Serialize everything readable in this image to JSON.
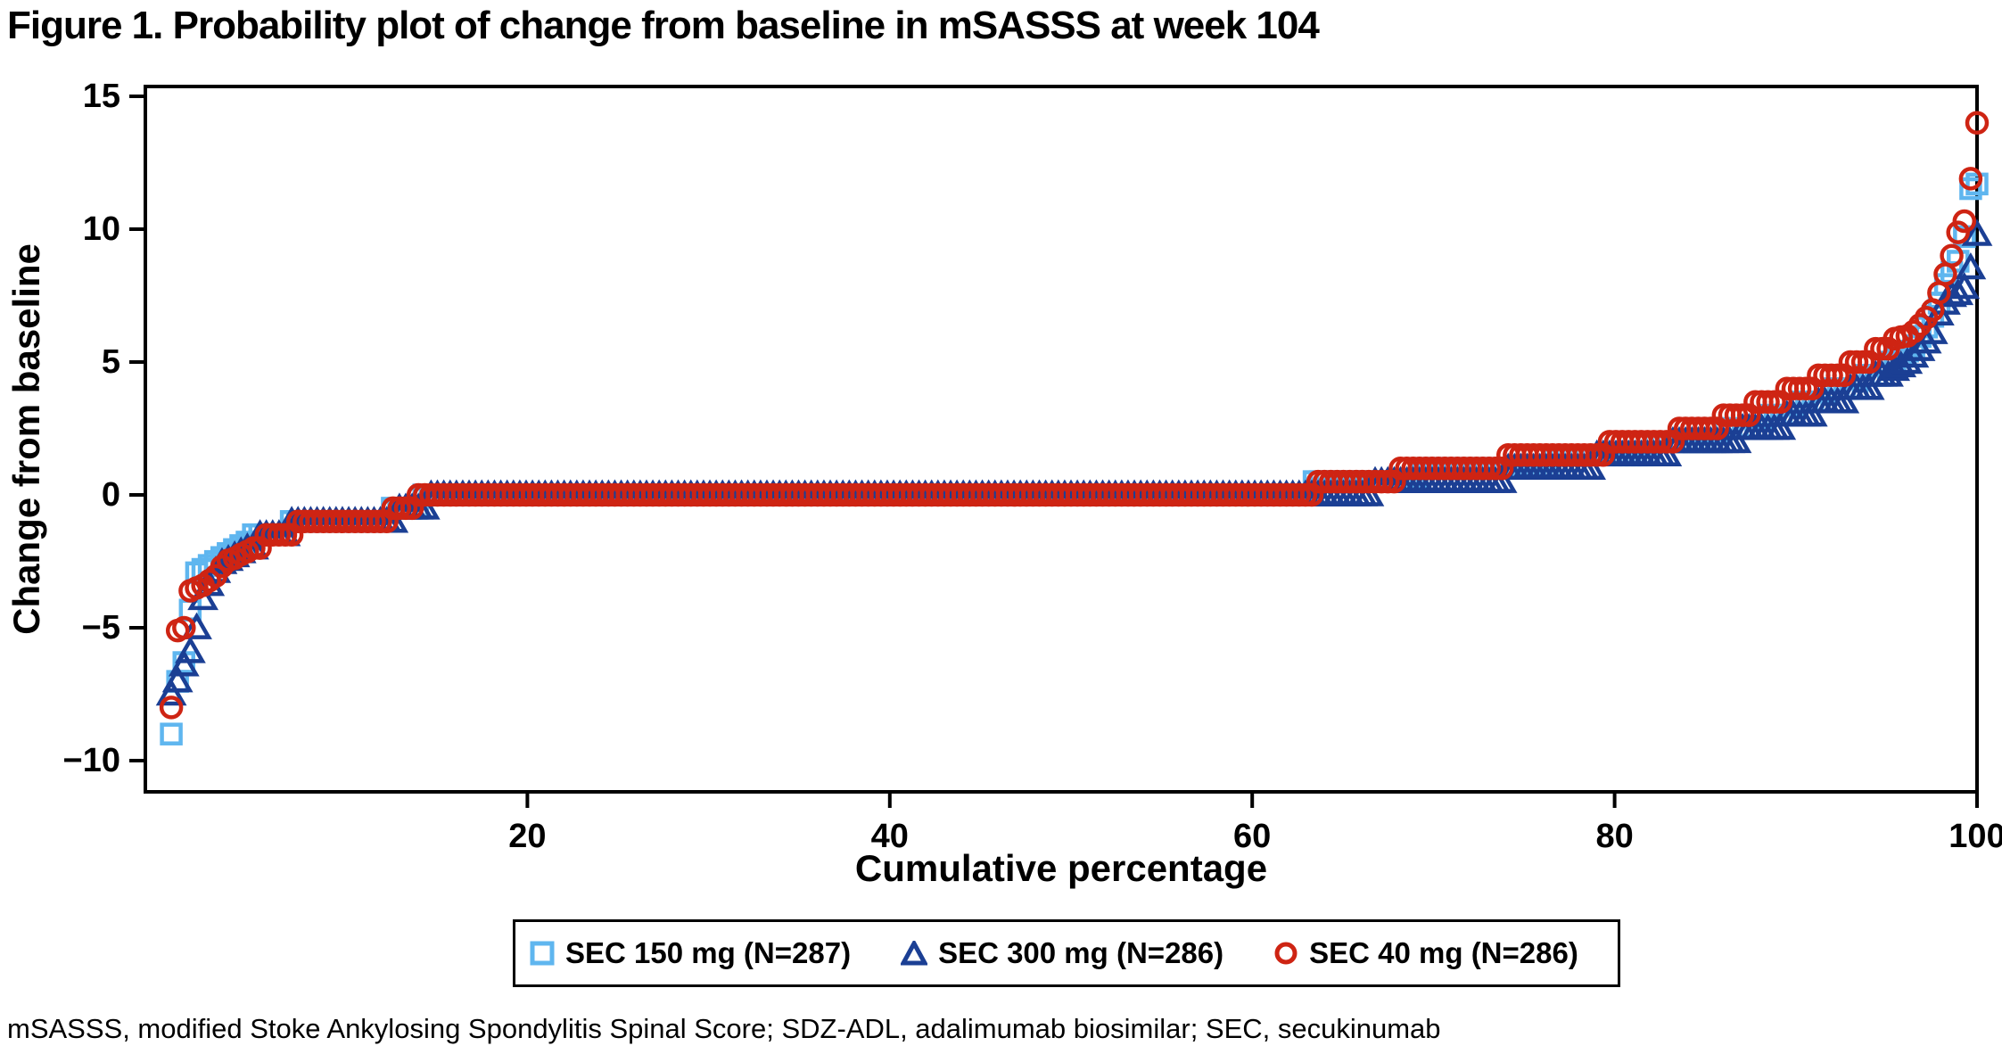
{
  "title": "Figure 1. Probability plot of change from baseline in mSASSS at week 104",
  "footnote": "mSASSS, modified Stoke Ankylosing Spondylitis Spinal Score; SDZ-ADL, adalimumab biosimilar; SEC, secukinumab",
  "chart_data": {
    "type": "scatter",
    "subtype": "probability-plot",
    "xlabel": "Cumulative percentage",
    "ylabel": "Change from baseline",
    "xlim": [
      0,
      100
    ],
    "ylim": [
      -10,
      15
    ],
    "grid": false,
    "frame": true,
    "legend_position": "bottom",
    "x_ticks": [
      {
        "v": 20,
        "label": "20"
      },
      {
        "v": 40,
        "label": "40"
      },
      {
        "v": 60,
        "label": "60"
      },
      {
        "v": 80,
        "label": "80"
      },
      {
        "v": 100,
        "label": "100"
      }
    ],
    "y_ticks": [
      {
        "v": 15,
        "label": "15"
      },
      {
        "v": 10,
        "label": "10"
      },
      {
        "v": 5,
        "label": "5"
      },
      {
        "v": 0,
        "label": "0"
      },
      {
        "v": -5,
        "label": "−5"
      },
      {
        "v": -10,
        "label": "−10"
      }
    ],
    "series": [
      {
        "name": "SEC 150 mg (N=287)",
        "marker": "square",
        "color": "#5FB6EF",
        "n": 287,
        "quantile_points": [
          [
            0.35,
            -9
          ],
          [
            0.7,
            -7
          ],
          [
            1.05,
            -6.3
          ],
          [
            1.4,
            -4.3
          ],
          [
            1.75,
            -2.9
          ],
          [
            2.1,
            -2.8
          ],
          [
            2.8,
            -2.5
          ],
          [
            3.5,
            -2.2
          ],
          [
            4.2,
            -1.9
          ],
          [
            5,
            -1.6
          ],
          [
            6,
            -1.4
          ],
          [
            7,
            -1.2
          ],
          [
            8,
            -1
          ],
          [
            12.3,
            -1
          ],
          [
            12.6,
            -0.5
          ],
          [
            13.8,
            -0.5
          ],
          [
            14.2,
            0
          ],
          [
            63,
            0
          ],
          [
            63.4,
            0.5
          ],
          [
            68.8,
            0.5
          ],
          [
            69.2,
            1
          ],
          [
            76.3,
            1
          ],
          [
            76.7,
            1.5
          ],
          [
            81.8,
            1.5
          ],
          [
            82.2,
            2
          ],
          [
            85.8,
            2
          ],
          [
            86.2,
            2.5
          ],
          [
            88,
            2.5
          ],
          [
            88.4,
            3
          ],
          [
            90,
            3
          ],
          [
            90.4,
            3.5
          ],
          [
            91.6,
            3.5
          ],
          [
            92,
            4
          ],
          [
            93.2,
            4
          ],
          [
            93.6,
            4.5
          ],
          [
            94.6,
            4.5
          ],
          [
            95,
            5
          ],
          [
            95.8,
            5.2
          ],
          [
            96.5,
            5.6
          ],
          [
            97.2,
            6.3
          ],
          [
            97.8,
            7
          ],
          [
            98.3,
            8
          ],
          [
            98.8,
            8.6
          ],
          [
            99.2,
            9.1
          ],
          [
            99.6,
            11.5
          ],
          [
            100,
            11.7
          ]
        ]
      },
      {
        "name": "SEC 300 mg (N=286)",
        "marker": "triangle",
        "color": "#1B3F94",
        "n": 286,
        "quantile_points": [
          [
            0.35,
            -7.5
          ],
          [
            0.7,
            -7
          ],
          [
            1.05,
            -6.4
          ],
          [
            1.4,
            -5.9
          ],
          [
            1.75,
            -5
          ],
          [
            2.1,
            -3.9
          ],
          [
            2.5,
            -3.3
          ],
          [
            3,
            -2.6
          ],
          [
            3.6,
            -2.4
          ],
          [
            4.3,
            -2.1
          ],
          [
            5,
            -1.8
          ],
          [
            6,
            -1.5
          ],
          [
            7,
            -1.2
          ],
          [
            8.2,
            -1
          ],
          [
            12.6,
            -1
          ],
          [
            13,
            -0.5
          ],
          [
            14.2,
            -0.5
          ],
          [
            14.6,
            0
          ],
          [
            66.3,
            0
          ],
          [
            66.7,
            0.5
          ],
          [
            73.8,
            0.5
          ],
          [
            74.2,
            1
          ],
          [
            78.8,
            1
          ],
          [
            79.2,
            1.5
          ],
          [
            83,
            1.5
          ],
          [
            83.4,
            2
          ],
          [
            86.8,
            2
          ],
          [
            87.2,
            2.5
          ],
          [
            89.3,
            2.5
          ],
          [
            89.7,
            3
          ],
          [
            91,
            3
          ],
          [
            91.4,
            3.5
          ],
          [
            92.6,
            3.5
          ],
          [
            93,
            4
          ],
          [
            94.2,
            4
          ],
          [
            94.6,
            4.5
          ],
          [
            95.4,
            4.7
          ],
          [
            96.2,
            5
          ],
          [
            96.9,
            5.5
          ],
          [
            97.5,
            6
          ],
          [
            98,
            7
          ],
          [
            98.6,
            7.5
          ],
          [
            99.1,
            7.6
          ],
          [
            99.5,
            8
          ],
          [
            100,
            9.8
          ]
        ]
      },
      {
        "name": "SEC 40 mg (N=286)",
        "marker": "circle",
        "color": "#CE2413",
        "n": 286,
        "quantile_points": [
          [
            0.35,
            -8
          ],
          [
            0.7,
            -5.1
          ],
          [
            1.05,
            -5
          ],
          [
            1.4,
            -3.6
          ],
          [
            1.75,
            -3.5
          ],
          [
            2.1,
            -3.4
          ],
          [
            2.5,
            -3.2
          ],
          [
            2.9,
            -3
          ],
          [
            3.3,
            -2.5
          ],
          [
            3.8,
            -2.4
          ],
          [
            4.3,
            -2.2
          ],
          [
            5,
            -2
          ],
          [
            5.7,
            -1.7
          ],
          [
            6.5,
            -1.4
          ],
          [
            7.5,
            -1.1
          ],
          [
            8.2,
            -0.9
          ],
          [
            12.2,
            -0.8
          ],
          [
            12.6,
            -0.5
          ],
          [
            13.6,
            -0.5
          ],
          [
            14,
            0
          ],
          [
            63.3,
            0
          ],
          [
            63.7,
            0.5
          ],
          [
            67.8,
            0.5
          ],
          [
            68.2,
            1
          ],
          [
            73.8,
            1
          ],
          [
            74.2,
            1.5
          ],
          [
            79.2,
            1.5
          ],
          [
            79.6,
            2
          ],
          [
            83.2,
            2
          ],
          [
            83.6,
            2.5
          ],
          [
            85.8,
            2.5
          ],
          [
            86.2,
            3
          ],
          [
            87.4,
            3
          ],
          [
            87.8,
            3.5
          ],
          [
            89.3,
            3.5
          ],
          [
            89.7,
            4
          ],
          [
            91,
            4
          ],
          [
            91.4,
            4.5
          ],
          [
            92.5,
            4.5
          ],
          [
            93,
            5
          ],
          [
            94,
            5.2
          ],
          [
            94.6,
            5.5
          ],
          [
            95.5,
            5.9
          ],
          [
            96.3,
            6
          ],
          [
            97,
            6.5
          ],
          [
            97.6,
            7
          ],
          [
            98.1,
            8
          ],
          [
            98.6,
            9
          ],
          [
            99,
            10
          ],
          [
            99.4,
            10.4
          ],
          [
            100,
            14
          ]
        ]
      }
    ]
  }
}
